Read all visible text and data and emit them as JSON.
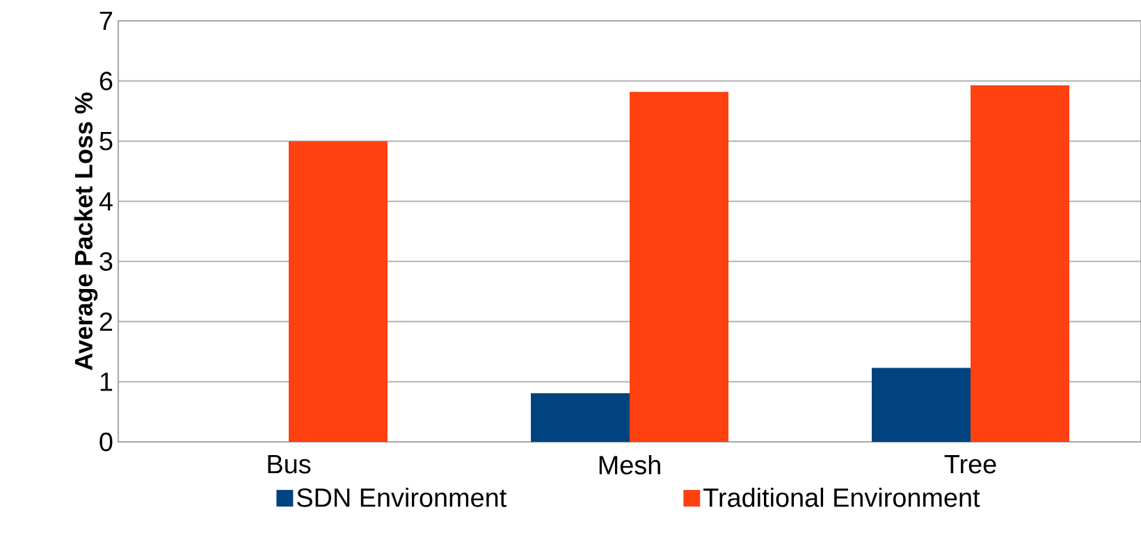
{
  "chart_data": {
    "type": "bar",
    "ylabel": "Average Packet Loss %",
    "categories": [
      "Bus",
      "Mesh",
      "Tree"
    ],
    "series": [
      {
        "name": "SDN Environment",
        "color": "#00437f",
        "values": [
          0,
          0.81,
          1.23
        ]
      },
      {
        "name": "Traditional Environment",
        "color": "#ff4010",
        "values": [
          5.0,
          5.82,
          5.93
        ]
      }
    ],
    "ylim": [
      0,
      7
    ],
    "yticks": [
      0,
      1,
      2,
      3,
      4,
      5,
      6,
      7
    ],
    "grid": "y",
    "legend": "bottom"
  }
}
